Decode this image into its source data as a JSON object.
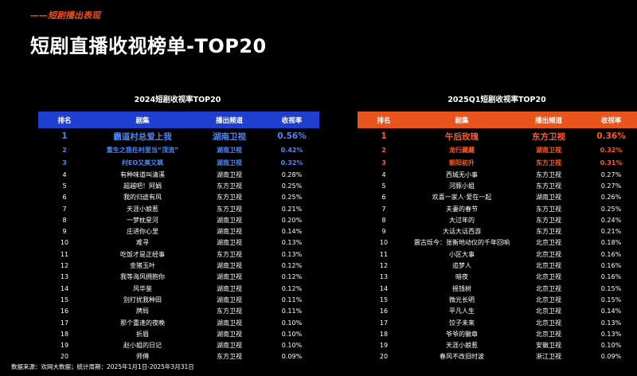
{
  "header": {
    "section_tag": "——短剧播出表现",
    "title": "短剧直播收视榜单-TOP20"
  },
  "colors": {
    "background": "#000000",
    "left_accent": "#1f3fd1",
    "left_highlight": "#4a87ff",
    "right_accent": "#e8541c",
    "right_highlight": "#ff5a1f"
  },
  "left_table": {
    "title": "2024短剧收视率TOP20",
    "columns": [
      "排名",
      "剧集",
      "播出频道",
      "收视率"
    ],
    "rows": [
      [
        "1",
        "霸道村总爱上我",
        "湖南卫视",
        "0.56%"
      ],
      [
        "2",
        "重生之我在村里当“顶流”",
        "湖南卫视",
        "0.42%"
      ],
      [
        "3",
        "村EO又美又飒",
        "湖南卫视",
        "0.32%"
      ],
      [
        "4",
        "有种味道叫清溪",
        "湖南卫视",
        "0.28%"
      ],
      [
        "5",
        "超越吧！阿娟",
        "东方卫视",
        "0.25%"
      ],
      [
        "6",
        "我的归途有风",
        "东方卫视",
        "0.25%"
      ],
      [
        "7",
        "天涯小娘惹",
        "东方卫视",
        "0.21%"
      ],
      [
        "8",
        "一梦枕星河",
        "湖南卫视",
        "0.20%"
      ],
      [
        "9",
        "庄进你心里",
        "湖南卫视",
        "0.14%"
      ],
      [
        "10",
        "难寻",
        "湖南卫视",
        "0.13%"
      ],
      [
        "11",
        "吃饭才是正经事",
        "东方卫视",
        "0.13%"
      ],
      [
        "12",
        "金猪玉叶",
        "湖南卫视",
        "0.12%"
      ],
      [
        "13",
        "我等海风拥抱你",
        "湖南卫视",
        "0.12%"
      ],
      [
        "14",
        "风华鉴",
        "湖南卫视",
        "0.12%"
      ],
      [
        "15",
        "别打扰我种田",
        "湖南卫视",
        "0.11%"
      ],
      [
        "16",
        "牌局",
        "东方卫视",
        "0.11%"
      ],
      [
        "17",
        "那个重逢的夜晚",
        "湖南卫视",
        "0.10%"
      ],
      [
        "18",
        "折眉",
        "湖南卫视",
        "0.10%"
      ],
      [
        "19",
        "赵小姐的日记",
        "湖南卫视",
        "0.10%"
      ],
      [
        "20",
        "师傅",
        "东方卫视",
        "0.09%"
      ]
    ]
  },
  "right_table": {
    "title": "2025Q1短剧收视率TOP20",
    "columns": [
      "排名",
      "剧集",
      "播出频道",
      "收视率"
    ],
    "rows": [
      [
        "1",
        "午后玫瑰",
        "东方卫视",
        "0.36%"
      ],
      [
        "2",
        "龙行藏藏",
        "湖南卫视",
        "0.32%"
      ],
      [
        "3",
        "朝阳初升",
        "东方卫视",
        "0.31%"
      ],
      [
        "4",
        "西城无小事",
        "东方卫视",
        "0.27%"
      ],
      [
        "5",
        "河豚小姐",
        "东方卫视",
        "0.27%"
      ],
      [
        "6",
        "欢喜一家人·爱在一起",
        "湖南卫视",
        "0.26%"
      ],
      [
        "7",
        "夫妻的春节",
        "东方卫视",
        "0.25%"
      ],
      [
        "8",
        "大过年的",
        "东方卫视",
        "0.24%"
      ],
      [
        "9",
        "大话大话西游",
        "东方卫视",
        "0.21%"
      ],
      [
        "10",
        "震古烁今：张衡地动仪的千年回响",
        "北京卫视",
        "0.18%"
      ],
      [
        "11",
        "小区大事",
        "北京卫视",
        "0.16%"
      ],
      [
        "12",
        "追梦人",
        "北京卫视",
        "0.16%"
      ],
      [
        "13",
        "暗夜",
        "北京卫视",
        "0.16%"
      ],
      [
        "14",
        "摇钱树",
        "北京卫视",
        "0.15%"
      ],
      [
        "15",
        "微光长明",
        "北京卫视",
        "0.15%"
      ],
      [
        "16",
        "平凡人生",
        "北京卫视",
        "0.14%"
      ],
      [
        "17",
        "饺子未来",
        "北京卫视",
        "0.13%"
      ],
      [
        "18",
        "爷爷的徽章",
        "北京卫视",
        "0.13%"
      ],
      [
        "19",
        "天涯小娘惹",
        "安徽卫视",
        "0.10%"
      ],
      [
        "20",
        "春风不改旧时波",
        "浙江卫视",
        "0.09%"
      ]
    ]
  },
  "footnote": "数据来源：欢网大数据；统计周期：2025年1月1日-2025年3月31日"
}
